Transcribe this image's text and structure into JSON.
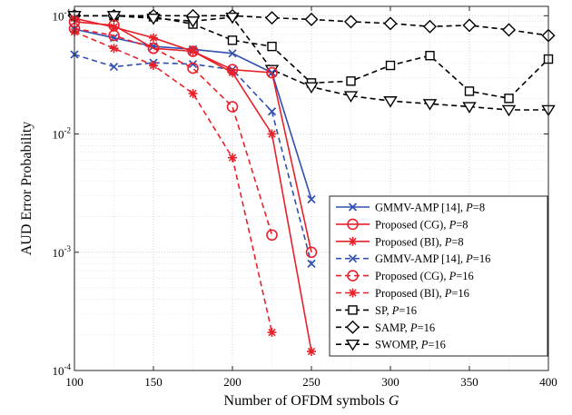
{
  "chart_data": {
    "type": "line",
    "title": "",
    "xlabel": "Number of OFDM symbols ",
    "xlabel_symbol": "G",
    "ylabel": "AUD Error Probability",
    "xlim": [
      100,
      400
    ],
    "ylim": [
      0.0001,
      0.12
    ],
    "yscale": "log",
    "grid": true,
    "legend_position": "lower-right",
    "x_ticks": [
      "100",
      "150",
      "200",
      "250",
      "300",
      "350",
      "400"
    ],
    "y_ticks": [
      {
        "base": "10",
        "exp": "-4",
        "value": 0.0001
      },
      {
        "base": "10",
        "exp": "-3",
        "value": 0.001
      },
      {
        "base": "10",
        "exp": "-2",
        "value": 0.01
      },
      {
        "base": "10",
        "exp": "-1",
        "value": 0.1
      }
    ],
    "series": [
      {
        "name": "GMMV-AMP [14], ",
        "param": "P",
        "param_value": "=8",
        "color": "#3050b0",
        "dash": "solid",
        "marker": "x",
        "x": [
          100,
          125,
          150,
          175,
          200,
          225,
          250
        ],
        "y": [
          0.077,
          0.065,
          0.055,
          0.052,
          0.048,
          0.033,
          0.0028
        ]
      },
      {
        "name": "Proposed (CG), ",
        "param": "P",
        "param_value": "=8",
        "color": "#e8202a",
        "dash": "solid",
        "marker": "circle",
        "x": [
          100,
          125,
          150,
          175,
          200,
          225,
          250
        ],
        "y": [
          0.089,
          0.083,
          0.053,
          0.05,
          0.035,
          0.033,
          0.001
        ]
      },
      {
        "name": "Proposed (BI), ",
        "param": "P",
        "param_value": "=8",
        "color": "#e8202a",
        "dash": "solid",
        "marker": "asterisk",
        "x": [
          100,
          125,
          150,
          175,
          200,
          225,
          250
        ],
        "y": [
          0.095,
          0.08,
          0.065,
          0.05,
          0.033,
          0.01,
          0.000145
        ]
      },
      {
        "name": "GMMV-AMP [14], ",
        "param": "P",
        "param_value": "=16",
        "color": "#3050b0",
        "dash": "dashed",
        "marker": "x",
        "x": [
          100,
          125,
          150,
          175,
          200,
          225,
          250
        ],
        "y": [
          0.047,
          0.037,
          0.04,
          0.039,
          0.035,
          0.0155,
          0.0008
        ]
      },
      {
        "name": "Proposed (CG), ",
        "param": "P",
        "param_value": "=16",
        "color": "#e8202a",
        "dash": "dashed",
        "marker": "circle",
        "x": [
          100,
          125,
          150,
          175,
          200,
          225
        ],
        "y": [
          0.078,
          0.068,
          0.053,
          0.036,
          0.017,
          0.0014
        ]
      },
      {
        "name": "Proposed (BI), ",
        "param": "P",
        "param_value": "=16",
        "color": "#e8202a",
        "dash": "dashed",
        "marker": "asterisk",
        "x": [
          100,
          125,
          150,
          175,
          200,
          225
        ],
        "y": [
          0.073,
          0.053,
          0.038,
          0.022,
          0.0063,
          0.00021
        ]
      },
      {
        "name": "SP, ",
        "param": "P",
        "param_value": "=16",
        "color": "#000000",
        "dash": "dashed",
        "marker": "square",
        "x": [
          100,
          125,
          150,
          175,
          200,
          225,
          250,
          275,
          300,
          325,
          350,
          375,
          400
        ],
        "y": [
          0.1,
          0.1,
          0.098,
          0.085,
          0.062,
          0.055,
          0.027,
          0.028,
          0.038,
          0.046,
          0.023,
          0.02,
          0.043
        ]
      },
      {
        "name": "SAMP, ",
        "param": "P",
        "param_value": "=16",
        "color": "#000000",
        "dash": "dashed",
        "marker": "diamond",
        "x": [
          100,
          125,
          150,
          175,
          200,
          225,
          250,
          275,
          300,
          325,
          350,
          375,
          400
        ],
        "y": [
          0.1,
          0.1,
          0.1,
          0.1,
          0.1,
          0.096,
          0.093,
          0.089,
          0.086,
          0.081,
          0.083,
          0.076,
          0.068
        ]
      },
      {
        "name": "SWOMP, ",
        "param": "P",
        "param_value": "=16",
        "color": "#000000",
        "dash": "dashed",
        "marker": "triangle-down",
        "x": [
          100,
          125,
          150,
          175,
          200,
          225,
          250,
          275,
          300,
          325,
          350,
          375,
          400
        ],
        "y": [
          0.1,
          0.1,
          0.095,
          0.09,
          0.097,
          0.035,
          0.025,
          0.021,
          0.019,
          0.018,
          0.017,
          0.016,
          0.016
        ]
      }
    ]
  }
}
